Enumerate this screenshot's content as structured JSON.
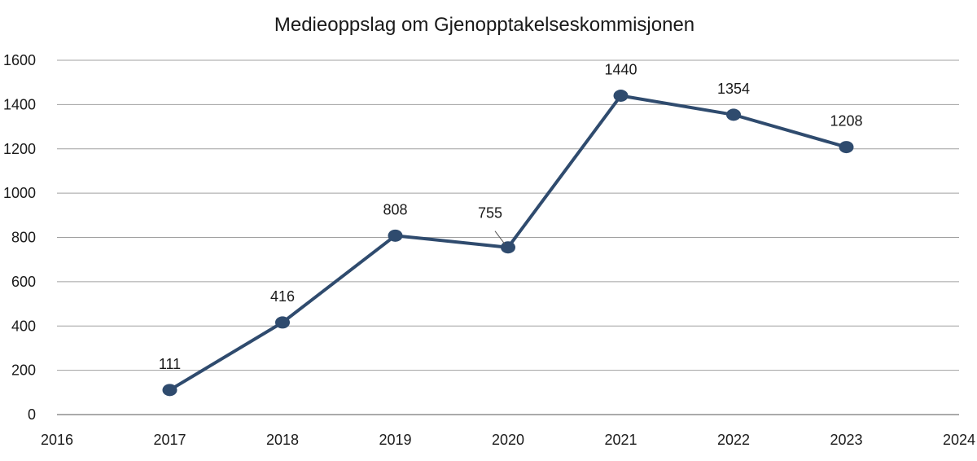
{
  "chart_data": {
    "type": "line",
    "title": "Medieoppslag om Gjenopptakelseskommisjonen",
    "xlabel": "",
    "ylabel": "",
    "xlim": [
      2016,
      2024
    ],
    "ylim": [
      0,
      1600
    ],
    "x_ticks": [
      2016,
      2017,
      2018,
      2019,
      2020,
      2021,
      2022,
      2023,
      2024
    ],
    "y_ticks": [
      0,
      200,
      400,
      600,
      800,
      1000,
      1200,
      1400,
      1600
    ],
    "grid": "horizontal",
    "series": [
      {
        "x": [
          2017,
          2018,
          2019,
          2020,
          2021,
          2022,
          2023
        ],
        "values": [
          111,
          416,
          808,
          755,
          1440,
          1354,
          1208
        ],
        "color": "#2f4b6e",
        "data_labels": true
      }
    ]
  }
}
